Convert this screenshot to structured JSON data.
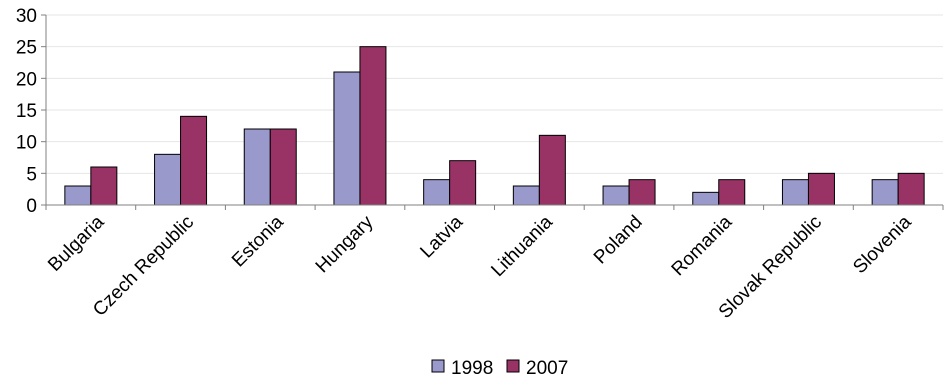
{
  "chart_data": {
    "type": "bar",
    "categories": [
      "Bulgaria",
      "Czech Republic",
      "Estonia",
      "Hungary",
      "Latvia",
      "Lithuania",
      "Poland",
      "Romania",
      "Slovak Republic",
      "Slovenia"
    ],
    "series": [
      {
        "name": "1998",
        "values": [
          3,
          8,
          12,
          21,
          4,
          3,
          3,
          2,
          4,
          4
        ],
        "color": "#9999cc"
      },
      {
        "name": "2007",
        "values": [
          6,
          14,
          12,
          25,
          7,
          11,
          4,
          4,
          5,
          5
        ],
        "color": "#993366"
      }
    ],
    "ylim": [
      0,
      30
    ],
    "yticks": [
      0,
      5,
      10,
      15,
      20,
      25,
      30
    ],
    "grid": true,
    "legend_position": "bottom",
    "title": "",
    "xlabel": "",
    "ylabel": ""
  }
}
